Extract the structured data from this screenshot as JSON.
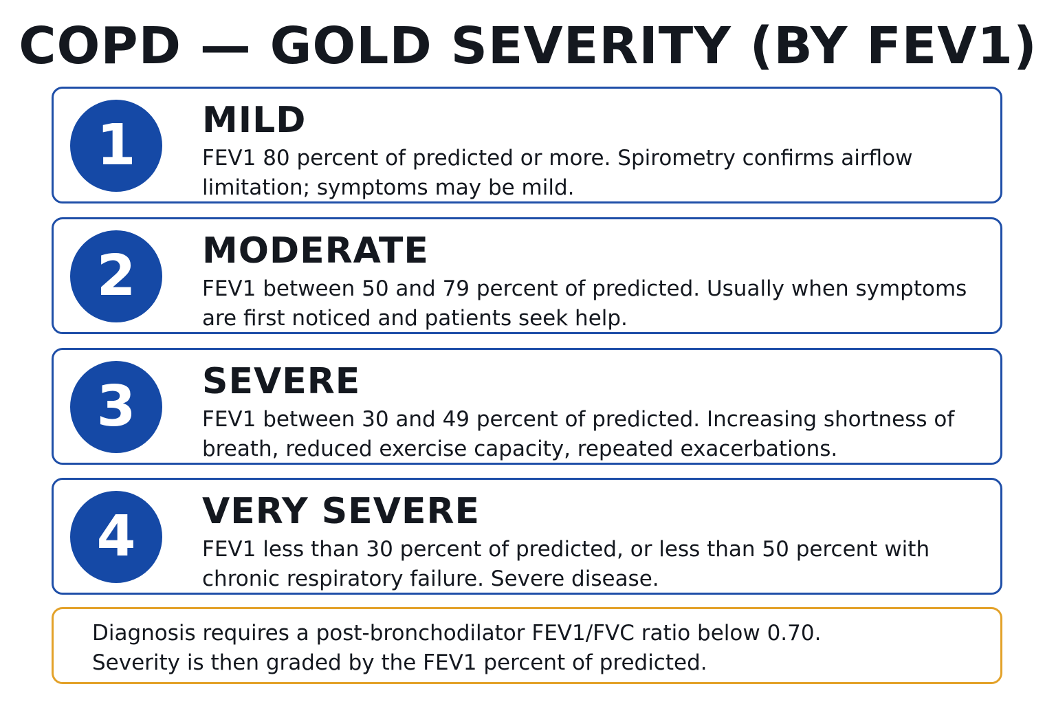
{
  "title": "COPD — GOLD SEVERITY (BY FEV1)",
  "stages": [
    {
      "number": "1",
      "name": "MILD",
      "description": "FEV1 80 percent of predicted or more. Spirometry confirms airflow limitation; symptoms may be mild."
    },
    {
      "number": "2",
      "name": "MODERATE",
      "description": "FEV1 between 50 and 79 percent of predicted. Usually when symptoms are first noticed and patients seek help."
    },
    {
      "number": "3",
      "name": "SEVERE",
      "description": "FEV1 between 30 and 49 percent of predicted. Increasing shortness of breath, reduced exercise capacity, repeated exacerbations."
    },
    {
      "number": "4",
      "name": "VERY SEVERE",
      "description": "FEV1 less than 30 percent of predicted, or less than 50 percent with chronic respiratory failure. Severe disease."
    }
  ],
  "note": {
    "line1": "Diagnosis requires a post-bronchodilator FEV1/FVC ratio below 0.70.",
    "line2": "Severity is then graded by the FEV1 percent of predicted."
  },
  "colors": {
    "stage_accent": "#1549a6",
    "note_border": "#e3a22a",
    "text": "#14181f"
  }
}
